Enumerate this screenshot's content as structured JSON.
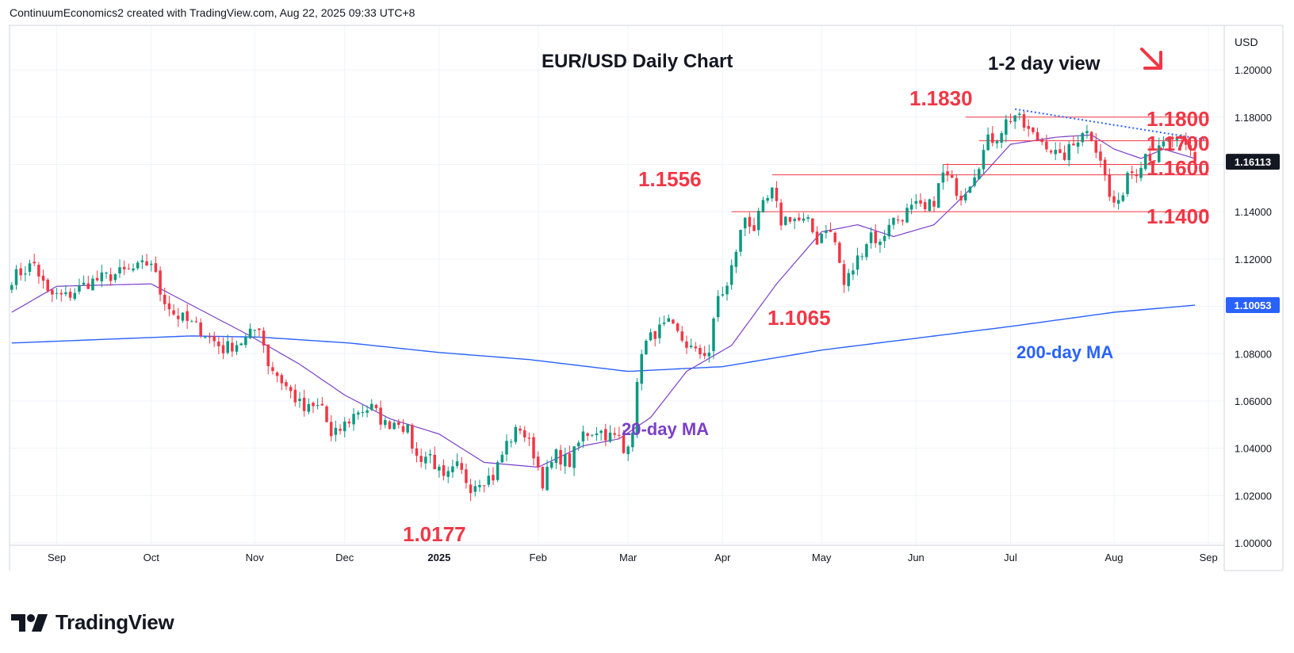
{
  "attribution": "ContinuumEconomics2 created with TradingView.com, Aug 22, 2025 09:33 UTC+8",
  "brand": "TradingView",
  "chart_data": {
    "type": "candlestick",
    "title": "EUR/USD Daily Chart",
    "view_label": "1-2 day view",
    "view_direction": "down",
    "currency": "USD",
    "y_ticks": [
      "1.20000",
      "1.18000",
      "1.16000",
      "1.14000",
      "1.12000",
      "1.10000",
      "1.08000",
      "1.06000",
      "1.04000",
      "1.02000",
      "1.00000"
    ],
    "y_tick_values": [
      1.2,
      1.18,
      1.16,
      1.14,
      1.12,
      1.1,
      1.08,
      1.06,
      1.04,
      1.02,
      1.0
    ],
    "ylim": [
      0.999,
      1.2188
    ],
    "x_ticks": [
      {
        "label": "Sep",
        "bar": 10
      },
      {
        "label": "Oct",
        "bar": 31
      },
      {
        "label": "Nov",
        "bar": 54
      },
      {
        "label": "Dec",
        "bar": 74
      },
      {
        "label": "2025",
        "bar": 95
      },
      {
        "label": "Feb",
        "bar": 117
      },
      {
        "label": "Mar",
        "bar": 137
      },
      {
        "label": "Apr",
        "bar": 158
      },
      {
        "label": "May",
        "bar": 180
      },
      {
        "label": "Jun",
        "bar": 201
      },
      {
        "label": "Jul",
        "bar": 222
      },
      {
        "label": "Aug",
        "bar": 245
      },
      {
        "label": "Sep",
        "bar": 266
      }
    ],
    "bars_total": 270,
    "price_tags": [
      {
        "value": 1.16113,
        "label": "1.16113",
        "color": "#131722"
      },
      {
        "value": 1.10053,
        "label": "1.10053",
        "color": "#2962ff"
      }
    ],
    "colors": {
      "up": "#089981",
      "down": "#f23645",
      "level": "#f23645",
      "ma20": "#7b3fc8",
      "ma200": "#2962ff",
      "trend": "#2962ff",
      "arrow": "#f23645",
      "grid": "#f0f3fa"
    },
    "levels": [
      {
        "value": 1.18,
        "label": "1.1800",
        "from_bar": 212,
        "to_bar": 266
      },
      {
        "value": 1.17,
        "label": "1.1700",
        "from_bar": 215,
        "to_bar": 266
      },
      {
        "value": 1.16,
        "label": "1.1600",
        "from_bar": 207,
        "to_bar": 266
      },
      {
        "value": 1.1556,
        "label": "1.1556",
        "from_bar": 169,
        "to_bar": 266
      },
      {
        "value": 1.14,
        "label": "1.1400",
        "from_bar": 160,
        "to_bar": 266
      }
    ],
    "annotations": [
      {
        "label": "1.1830"
      },
      {
        "label": "1.1556"
      },
      {
        "label": "1.1065"
      },
      {
        "label": "1.0177"
      }
    ],
    "trendline": [
      {
        "bar": 223,
        "value": 1.1834
      },
      {
        "bar": 266,
        "value": 1.1703
      }
    ],
    "series": [
      {
        "name": "20-day MA",
        "anchors": [
          [
            0,
            1.0975
          ],
          [
            10,
            1.1085
          ],
          [
            31,
            1.1095
          ],
          [
            42,
            1.0985
          ],
          [
            53,
            1.0875
          ],
          [
            64,
            1.0755
          ],
          [
            74,
            1.0625
          ],
          [
            84,
            1.0525
          ],
          [
            95,
            1.046
          ],
          [
            105,
            1.034
          ],
          [
            117,
            1.032
          ],
          [
            127,
            1.041
          ],
          [
            135,
            1.044
          ],
          [
            142,
            1.053
          ],
          [
            150,
            1.0725
          ],
          [
            160,
            1.0835
          ],
          [
            170,
            1.1095
          ],
          [
            180,
            1.1315
          ],
          [
            188,
            1.1345
          ],
          [
            196,
            1.1295
          ],
          [
            205,
            1.1345
          ],
          [
            212,
            1.1475
          ],
          [
            222,
            1.1685
          ],
          [
            232,
            1.1715
          ],
          [
            240,
            1.1725
          ],
          [
            245,
            1.1665
          ],
          [
            251,
            1.1625
          ],
          [
            256,
            1.1665
          ],
          [
            263,
            1.1625
          ]
        ]
      },
      {
        "name": "200-day MA",
        "anchors": [
          [
            0,
            1.0845
          ],
          [
            20,
            1.086
          ],
          [
            40,
            1.0875
          ],
          [
            55,
            1.087
          ],
          [
            75,
            1.0845
          ],
          [
            95,
            1.0805
          ],
          [
            115,
            1.0775
          ],
          [
            137,
            1.0725
          ],
          [
            158,
            1.0745
          ],
          [
            180,
            1.0815
          ],
          [
            201,
            1.0865
          ],
          [
            222,
            1.0915
          ],
          [
            245,
            1.0975
          ],
          [
            263,
            1.1005
          ]
        ]
      }
    ],
    "ohlc_path": [
      [
        0,
        1.112
      ],
      [
        5,
        1.118
      ],
      [
        8,
        1.105
      ],
      [
        12,
        1.104
      ],
      [
        17,
        1.11
      ],
      [
        22,
        1.113
      ],
      [
        28,
        1.116
      ],
      [
        31,
        1.119
      ],
      [
        33,
        1.106
      ],
      [
        36,
        1.097
      ],
      [
        42,
        1.09
      ],
      [
        47,
        1.082
      ],
      [
        52,
        1.086
      ],
      [
        55,
        1.092
      ],
      [
        57,
        1.076
      ],
      [
        61,
        1.066
      ],
      [
        65,
        1.056
      ],
      [
        69,
        1.058
      ],
      [
        71,
        1.044
      ],
      [
        74,
        1.05
      ],
      [
        77,
        1.056
      ],
      [
        80,
        1.057
      ],
      [
        83,
        1.05
      ],
      [
        86,
        1.052
      ],
      [
        88,
        1.047
      ],
      [
        90,
        1.036
      ],
      [
        93,
        1.037
      ],
      [
        96,
        1.026
      ],
      [
        99,
        1.032
      ],
      [
        102,
        1.024
      ],
      [
        104,
        1.027
      ],
      [
        107,
        1.028
      ],
      [
        110,
        1.042
      ],
      [
        113,
        1.049
      ],
      [
        116,
        1.038
      ],
      [
        118,
        1.026
      ],
      [
        121,
        1.037
      ],
      [
        124,
        1.034
      ],
      [
        127,
        1.046
      ],
      [
        130,
        1.048
      ],
      [
        133,
        1.045
      ],
      [
        135,
        1.044
      ],
      [
        136,
        1.038
      ],
      [
        138,
        1.049
      ],
      [
        140,
        1.082
      ],
      [
        143,
        1.089
      ],
      [
        146,
        1.092
      ],
      [
        149,
        1.086
      ],
      [
        152,
        1.08
      ],
      [
        155,
        1.081
      ],
      [
        157,
        1.104
      ],
      [
        159,
        1.108
      ],
      [
        161,
        1.124
      ],
      [
        163,
        1.138
      ],
      [
        165,
        1.133
      ],
      [
        167,
        1.142
      ],
      [
        169,
        1.148
      ],
      [
        171,
        1.136
      ],
      [
        173,
        1.138
      ],
      [
        175,
        1.136
      ],
      [
        177,
        1.135
      ],
      [
        179,
        1.128
      ],
      [
        181,
        1.134
      ],
      [
        183,
        1.127
      ],
      [
        185,
        1.109
      ],
      [
        187,
        1.116
      ],
      [
        189,
        1.124
      ],
      [
        191,
        1.131
      ],
      [
        193,
        1.126
      ],
      [
        195,
        1.136
      ],
      [
        197,
        1.137
      ],
      [
        199,
        1.14
      ],
      [
        201,
        1.142
      ],
      [
        203,
        1.14
      ],
      [
        205,
        1.145
      ],
      [
        207,
        1.156
      ],
      [
        209,
        1.152
      ],
      [
        211,
        1.147
      ],
      [
        213,
        1.153
      ],
      [
        215,
        1.161
      ],
      [
        217,
        1.17
      ],
      [
        219,
        1.172
      ],
      [
        221,
        1.178
      ],
      [
        223,
        1.181
      ],
      [
        225,
        1.176
      ],
      [
        227,
        1.172
      ],
      [
        230,
        1.169
      ],
      [
        233,
        1.162
      ],
      [
        236,
        1.168
      ],
      [
        238,
        1.175
      ],
      [
        240,
        1.172
      ],
      [
        242,
        1.163
      ],
      [
        244,
        1.146
      ],
      [
        246,
        1.142
      ],
      [
        248,
        1.157
      ],
      [
        250,
        1.158
      ],
      [
        252,
        1.165
      ],
      [
        254,
        1.163
      ],
      [
        256,
        1.168
      ],
      [
        258,
        1.171
      ],
      [
        260,
        1.168
      ],
      [
        262,
        1.165
      ],
      [
        263,
        1.1611
      ]
    ],
    "labels": {
      "ma20": "20-day MA",
      "ma200": "200-day MA"
    }
  }
}
